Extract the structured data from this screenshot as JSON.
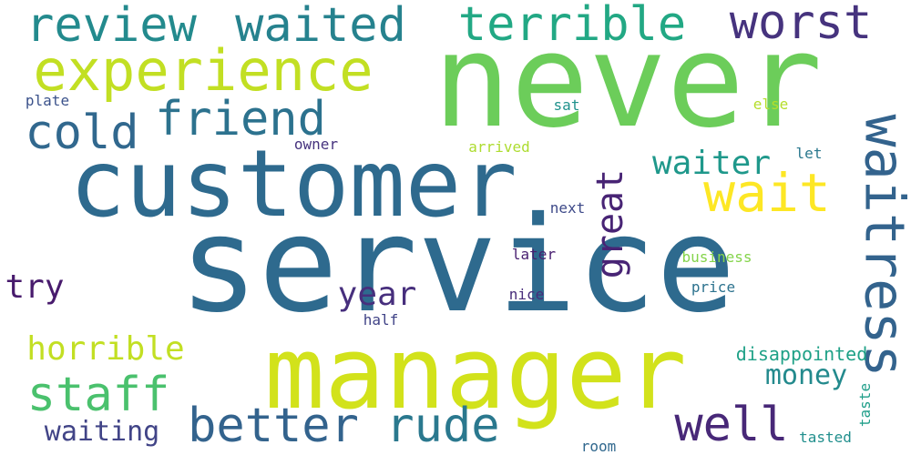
{
  "words": [
    {
      "text": "service",
      "color": "#2e6a8e"
    },
    {
      "text": "never",
      "color": "#6ccd5a"
    },
    {
      "text": "customer",
      "color": "#2e6a8e"
    },
    {
      "text": "manager",
      "color": "#d2e21b"
    },
    {
      "text": "experience",
      "color": "#c2df23"
    },
    {
      "text": "review",
      "color": "#238a8d"
    },
    {
      "text": "waited",
      "color": "#26828e"
    },
    {
      "text": "terrible",
      "color": "#22a884"
    },
    {
      "text": "worst",
      "color": "#46337e"
    },
    {
      "text": "friend",
      "color": "#2c728e"
    },
    {
      "text": "cold",
      "color": "#31688e"
    },
    {
      "text": "wait",
      "color": "#fde725"
    },
    {
      "text": "great",
      "color": "#482475"
    },
    {
      "text": "waitress",
      "color": "#33638d"
    },
    {
      "text": "waiter",
      "color": "#1f988b"
    },
    {
      "text": "year",
      "color": "#472f7d"
    },
    {
      "text": "try",
      "color": "#481b6d"
    },
    {
      "text": "horrible",
      "color": "#c2df23"
    },
    {
      "text": "staff",
      "color": "#4ac16d"
    },
    {
      "text": "better",
      "color": "#33638d"
    },
    {
      "text": "rude",
      "color": "#2a788e"
    },
    {
      "text": "well",
      "color": "#482878"
    },
    {
      "text": "money",
      "color": "#238a8d"
    },
    {
      "text": "waiting",
      "color": "#414487"
    },
    {
      "text": "disappointed",
      "color": "#1fa187"
    },
    {
      "text": "plate",
      "color": "#3b528b"
    },
    {
      "text": "owner",
      "color": "#46337e"
    },
    {
      "text": "arrived",
      "color": "#addc30"
    },
    {
      "text": "sat",
      "color": "#20928c"
    },
    {
      "text": "else",
      "color": "#b5de2b"
    },
    {
      "text": "let",
      "color": "#2a788e"
    },
    {
      "text": "next",
      "color": "#3e4a89"
    },
    {
      "text": "later",
      "color": "#481f70"
    },
    {
      "text": "business",
      "color": "#84d44b"
    },
    {
      "text": "price",
      "color": "#2c728e"
    },
    {
      "text": "nice",
      "color": "#472c7a"
    },
    {
      "text": "half",
      "color": "#404387"
    },
    {
      "text": "taste",
      "color": "#1f9e89"
    },
    {
      "text": "tasted",
      "color": "#218f8d"
    },
    {
      "text": "room",
      "color": "#31688e"
    }
  ]
}
